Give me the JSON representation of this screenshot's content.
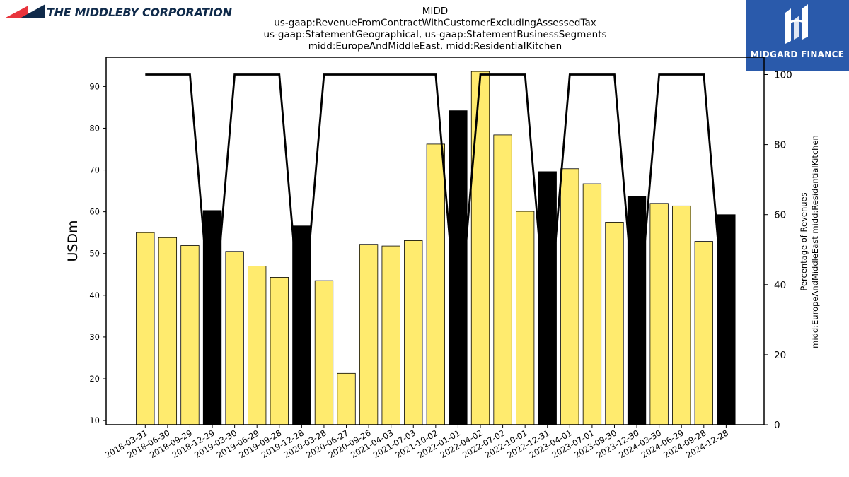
{
  "branding": {
    "left_logo_text": "THE MIDDLEBY CORPORATION",
    "right_logo_text": "MIDGARD FINANCE",
    "left_logo_colors": {
      "red": "#e8343c",
      "navy": "#0f2a4a"
    },
    "right_logo_bg": "#2a5aab"
  },
  "chart_data": {
    "type": "bar",
    "title_lines": [
      "MIDD",
      "us-gaap:RevenueFromContractWithCustomerExcludingAssessedTax",
      "us-gaap:StatementGeographical, us-gaap:StatementBusinessSegments",
      "midd:EuropeAndMiddleEast, midd:ResidentialKitchen"
    ],
    "ylabel": "USDm",
    "y2label_lines": [
      "Percentage of Revenues",
      "midd:EuropeAndMiddleEast midd:ResidentialKitchen"
    ],
    "ylim": [
      9,
      97
    ],
    "y2lim": [
      0,
      100.0
    ],
    "yticks": [
      10,
      20,
      30,
      40,
      50,
      60,
      70,
      80,
      90
    ],
    "y2ticks": [
      0,
      20,
      40,
      60,
      80,
      100
    ],
    "grid": false,
    "colors": {
      "quarter_bar": "#ffeb6e",
      "annual_bar": "#000000",
      "line": "#000000"
    },
    "categories": [
      "2018-03-31",
      "2018-06-30",
      "2018-09-29",
      "2018-12-29",
      "2019-03-30",
      "2019-06-29",
      "2019-09-28",
      "2019-12-28",
      "2020-03-28",
      "2020-06-27",
      "2020-09-26",
      "2021-04-03",
      "2021-07-03",
      "2021-10-02",
      "2022-01-01",
      "2022-04-02",
      "2022-07-02",
      "2022-10-01",
      "2022-12-31",
      "2023-04-01",
      "2023-07-01",
      "2023-09-30",
      "2023-12-30",
      "2024-03-30",
      "2024-06-29",
      "2024-09-28",
      "2024-12-28"
    ],
    "values": [
      55.0,
      53.8,
      51.9,
      60.3,
      50.5,
      47.0,
      44.3,
      56.6,
      43.5,
      21.3,
      52.2,
      51.8,
      53.1,
      76.2,
      84.2,
      93.6,
      78.4,
      60.1,
      69.6,
      70.3,
      66.7,
      57.5,
      63.6,
      62.0,
      61.4,
      52.9,
      59.3
    ],
    "bar_kind": [
      "q",
      "q",
      "q",
      "a",
      "q",
      "q",
      "q",
      "a",
      "q",
      "q",
      "q",
      "q",
      "q",
      "q",
      "a",
      "q",
      "q",
      "q",
      "a",
      "q",
      "q",
      "q",
      "a",
      "q",
      "q",
      "q",
      "a"
    ],
    "line_percent": [
      100,
      100,
      100,
      25,
      100,
      100,
      100,
      25,
      100,
      100,
      100,
      100,
      100,
      100,
      25,
      100,
      100,
      100,
      25,
      100,
      100,
      100,
      25,
      100,
      100,
      100,
      25
    ]
  }
}
